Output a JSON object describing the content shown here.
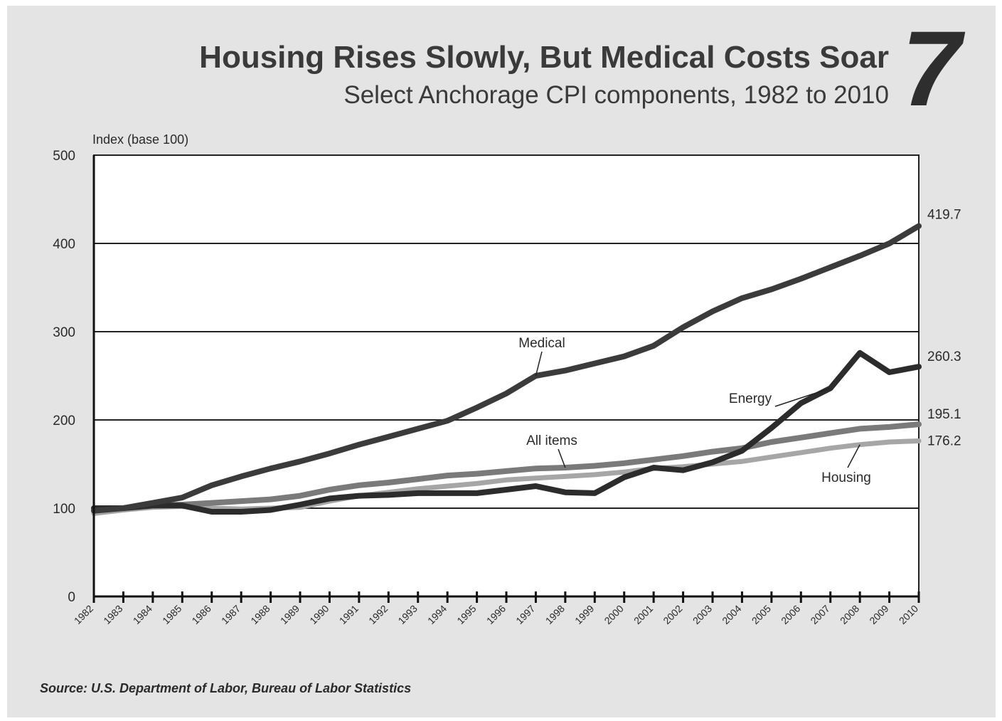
{
  "title": "Housing Rises Slowly, But Medical Costs Soar",
  "subtitle": "Select Anchorage CPI components, 1982 to 2010",
  "figure_number": "7",
  "source": "Source: U.S. Department of Labor, Bureau of Labor Statistics",
  "colors": {
    "panel": "#e4e4e4",
    "plot_bg": "#ffffff",
    "medical": "#3b3b3b",
    "energy": "#2c2c2c",
    "all_items": "#7a7a7a",
    "housing": "#a6a6a6"
  },
  "chart_data": {
    "type": "line",
    "ylabel": "Index (base 100)",
    "ylim": [
      0,
      500
    ],
    "yticks": [
      0,
      100,
      200,
      300,
      400,
      500
    ],
    "grid": "horizontal",
    "x": [
      1982,
      1983,
      1984,
      1985,
      1986,
      1987,
      1988,
      1989,
      1990,
      1991,
      1992,
      1993,
      1994,
      1995,
      1996,
      1997,
      1998,
      1999,
      2000,
      2001,
      2002,
      2003,
      2004,
      2005,
      2006,
      2007,
      2008,
      2009,
      2010
    ],
    "series": [
      {
        "name": "Medical",
        "color_key": "medical",
        "end_label": "419.7",
        "values": [
          97,
          100,
          106,
          112,
          126,
          136,
          145,
          153,
          162,
          172,
          181,
          190,
          199,
          214,
          230,
          250,
          256,
          264,
          272,
          284,
          305,
          323,
          338,
          348,
          360,
          373,
          386,
          400,
          419.7
        ]
      },
      {
        "name": "Energy",
        "color_key": "energy",
        "end_label": "260.3",
        "values": [
          100,
          100,
          103,
          103,
          96,
          96,
          98,
          104,
          111,
          114,
          115,
          117,
          117,
          117,
          121,
          125,
          118,
          117,
          135,
          146,
          143,
          152,
          165,
          191,
          219,
          236,
          276,
          254,
          260.3
        ]
      },
      {
        "name": "All items",
        "color_key": "all_items",
        "end_label": "195.1",
        "values": [
          98,
          100,
          103,
          104,
          106,
          108,
          110,
          114,
          121,
          126,
          129,
          133,
          137,
          139,
          142,
          145,
          146,
          148,
          151,
          155,
          159,
          164,
          168,
          175,
          180,
          185,
          190,
          192,
          195.1
        ]
      },
      {
        "name": "Housing",
        "color_key": "housing",
        "end_label": "176.2",
        "values": [
          94,
          98,
          101,
          102,
          100,
          99,
          100,
          101,
          108,
          114,
          118,
          122,
          125,
          128,
          132,
          134,
          136,
          138,
          141,
          145,
          147,
          150,
          153,
          158,
          163,
          168,
          172,
          175,
          176.2
        ]
      }
    ],
    "x_tick_labels": [
      "1982",
      "1983",
      "1984",
      "1985",
      "1986",
      "1987",
      "1988",
      "1989",
      "1990",
      "1991",
      "1992",
      "1993",
      "1994",
      "1995",
      "1996",
      "1997",
      "1998",
      "1999",
      "2000",
      "2001",
      "2002",
      "2003",
      "2004",
      "2005",
      "2006",
      "2007",
      "2008",
      "2009",
      "2010"
    ]
  }
}
